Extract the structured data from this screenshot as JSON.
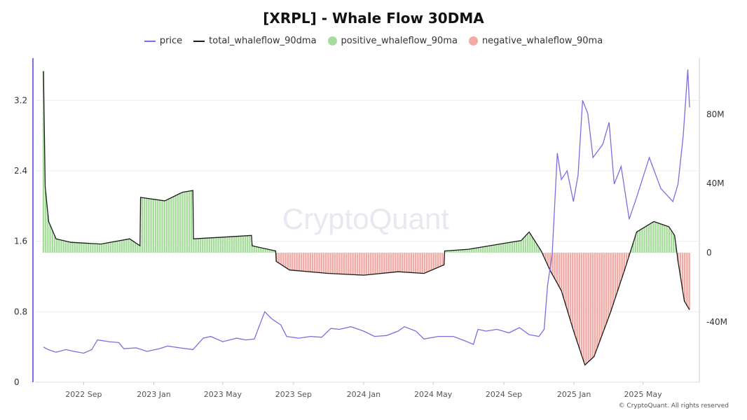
{
  "chart_data": {
    "type": "line",
    "title": "[XRPL] - Whale Flow 30DMA",
    "watermark": "CryptoQuant",
    "copyright": "© CryptoQuant. All rights reserved",
    "x_ticks": [
      "2022 Sep",
      "2023 Jan",
      "2023 May",
      "2023 Sep",
      "2024 Jan",
      "2024 May",
      "2024 Sep",
      "2025 Jan",
      "2025 May"
    ],
    "x_tick_dates": [
      "2022-09-01",
      "2023-01-01",
      "2023-05-01",
      "2023-09-01",
      "2024-01-01",
      "2024-05-01",
      "2024-09-01",
      "2025-01-01",
      "2025-05-01"
    ],
    "x_range": [
      "2022-06-23",
      "2025-07-21"
    ],
    "y_left": {
      "range": [
        0,
        3.6
      ],
      "ticks": [
        "0",
        "0.8",
        "1.6",
        "2.4",
        "3.2"
      ],
      "tick_values": [
        0,
        0.8,
        1.6,
        2.4,
        3.2
      ]
    },
    "y_right": {
      "range": [
        -75,
        100
      ],
      "ticks": [
        "-40M",
        "0",
        "40M",
        "80M"
      ],
      "tick_values": [
        -40,
        0,
        40,
        80
      ],
      "unit": "M"
    },
    "grid": true,
    "legend_position": "top-center",
    "colors": {
      "price": "#7b6ee0",
      "total": "#1a1a1a",
      "positive": "#a6dd9c",
      "negative": "#f2aaa4",
      "axis_left": "#7b6ee0"
    },
    "series": [
      {
        "name": "price",
        "axis": "left",
        "points": [
          [
            "2022-06-23",
            0.4
          ],
          [
            "2022-07-01",
            0.37
          ],
          [
            "2022-07-15",
            0.34
          ],
          [
            "2022-08-01",
            0.37
          ],
          [
            "2022-08-15",
            0.35
          ],
          [
            "2022-09-01",
            0.33
          ],
          [
            "2022-09-15",
            0.37
          ],
          [
            "2022-09-25",
            0.48
          ],
          [
            "2022-10-15",
            0.46
          ],
          [
            "2022-11-01",
            0.45
          ],
          [
            "2022-11-10",
            0.38
          ],
          [
            "2022-12-01",
            0.39
          ],
          [
            "2022-12-20",
            0.35
          ],
          [
            "2023-01-10",
            0.38
          ],
          [
            "2023-01-25",
            0.41
          ],
          [
            "2023-02-15",
            0.39
          ],
          [
            "2023-03-10",
            0.37
          ],
          [
            "2023-03-28",
            0.5
          ],
          [
            "2023-04-10",
            0.52
          ],
          [
            "2023-05-01",
            0.46
          ],
          [
            "2023-05-25",
            0.5
          ],
          [
            "2023-06-10",
            0.48
          ],
          [
            "2023-06-25",
            0.49
          ],
          [
            "2023-07-13",
            0.8
          ],
          [
            "2023-07-25",
            0.72
          ],
          [
            "2023-08-10",
            0.65
          ],
          [
            "2023-08-20",
            0.52
          ],
          [
            "2023-09-10",
            0.5
          ],
          [
            "2023-10-01",
            0.52
          ],
          [
            "2023-10-20",
            0.51
          ],
          [
            "2023-11-05",
            0.61
          ],
          [
            "2023-11-20",
            0.6
          ],
          [
            "2023-12-10",
            0.63
          ],
          [
            "2024-01-01",
            0.58
          ],
          [
            "2024-01-20",
            0.52
          ],
          [
            "2024-02-10",
            0.53
          ],
          [
            "2024-03-01",
            0.58
          ],
          [
            "2024-03-12",
            0.63
          ],
          [
            "2024-04-01",
            0.58
          ],
          [
            "2024-04-15",
            0.49
          ],
          [
            "2024-05-10",
            0.52
          ],
          [
            "2024-06-05",
            0.52
          ],
          [
            "2024-06-25",
            0.47
          ],
          [
            "2024-07-10",
            0.43
          ],
          [
            "2024-07-18",
            0.6
          ],
          [
            "2024-08-01",
            0.58
          ],
          [
            "2024-08-20",
            0.6
          ],
          [
            "2024-09-10",
            0.56
          ],
          [
            "2024-09-28",
            0.62
          ],
          [
            "2024-10-15",
            0.54
          ],
          [
            "2024-11-01",
            0.52
          ],
          [
            "2024-11-10",
            0.6
          ],
          [
            "2024-11-16",
            1.1
          ],
          [
            "2024-11-24",
            1.45
          ],
          [
            "2024-12-03",
            2.6
          ],
          [
            "2024-12-10",
            2.3
          ],
          [
            "2024-12-20",
            2.4
          ],
          [
            "2024-12-31",
            2.05
          ],
          [
            "2025-01-08",
            2.35
          ],
          [
            "2025-01-16",
            3.2
          ],
          [
            "2025-01-25",
            3.05
          ],
          [
            "2025-02-03",
            2.55
          ],
          [
            "2025-02-20",
            2.7
          ],
          [
            "2025-03-03",
            2.95
          ],
          [
            "2025-03-12",
            2.25
          ],
          [
            "2025-03-24",
            2.45
          ],
          [
            "2025-04-07",
            1.85
          ],
          [
            "2025-04-20",
            2.1
          ],
          [
            "2025-05-12",
            2.55
          ],
          [
            "2025-06-01",
            2.2
          ],
          [
            "2025-06-22",
            2.05
          ],
          [
            "2025-07-01",
            2.25
          ],
          [
            "2025-07-10",
            2.8
          ],
          [
            "2025-07-18",
            3.55
          ],
          [
            "2025-07-21",
            3.12
          ]
        ]
      },
      {
        "name": "total_whaleflow_90dma",
        "axis": "right",
        "points": [
          [
            "2022-06-23",
            105
          ],
          [
            "2022-06-26",
            38
          ],
          [
            "2022-07-02",
            18
          ],
          [
            "2022-07-15",
            8
          ],
          [
            "2022-08-10",
            6
          ],
          [
            "2022-10-01",
            5
          ],
          [
            "2022-11-20",
            8
          ],
          [
            "2022-12-08",
            4
          ],
          [
            "2022-12-09",
            32
          ],
          [
            "2023-01-20",
            30
          ],
          [
            "2023-02-20",
            35
          ],
          [
            "2023-03-10",
            36
          ],
          [
            "2023-03-11",
            8
          ],
          [
            "2023-05-01",
            9
          ],
          [
            "2023-06-20",
            10
          ],
          [
            "2023-06-21",
            4
          ],
          [
            "2023-08-01",
            1
          ],
          [
            "2023-08-02",
            -5
          ],
          [
            "2023-08-25",
            -10
          ],
          [
            "2023-11-01",
            -12
          ],
          [
            "2024-01-01",
            -13
          ],
          [
            "2024-03-01",
            -11
          ],
          [
            "2024-04-15",
            -12
          ],
          [
            "2024-05-20",
            -7
          ],
          [
            "2024-05-21",
            1
          ],
          [
            "2024-07-01",
            2
          ],
          [
            "2024-08-25",
            5
          ],
          [
            "2024-10-01",
            7
          ],
          [
            "2024-10-15",
            12
          ],
          [
            "2024-11-05",
            1
          ],
          [
            "2024-11-20",
            -10
          ],
          [
            "2024-12-10",
            -22
          ],
          [
            "2024-12-31",
            -45
          ],
          [
            "2025-01-20",
            -65
          ],
          [
            "2025-02-05",
            -60
          ],
          [
            "2025-03-05",
            -35
          ],
          [
            "2025-04-01",
            -8
          ],
          [
            "2025-04-20",
            12
          ],
          [
            "2025-05-20",
            18
          ],
          [
            "2025-06-15",
            15
          ],
          [
            "2025-06-25",
            10
          ],
          [
            "2025-07-01",
            -5
          ],
          [
            "2025-07-12",
            -28
          ],
          [
            "2025-07-21",
            -33
          ]
        ]
      }
    ]
  }
}
